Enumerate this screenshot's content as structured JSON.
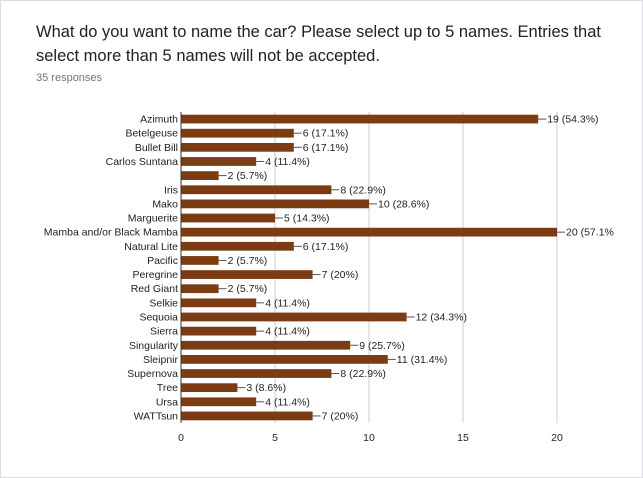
{
  "question": {
    "title": "What do you want to name the car? Please select up to 5 names. Entries that select more than 5 names will not be accepted.",
    "responses_label": "35 responses"
  },
  "colors": {
    "bar": "#7b3c13",
    "axis": "#333333",
    "grid": "#cccccc"
  },
  "chart_data": {
    "type": "bar",
    "orientation": "horizontal",
    "categories": [
      "Azimuth",
      "Betelgeuse",
      "Bullet Bill",
      "Carlos Suntana",
      "",
      "Iris",
      "Mako",
      "Marguerite",
      "Mamba and/or Black Mamba",
      "Natural Lite",
      "Pacific",
      "Peregrine",
      "Red Giant",
      "Selkie",
      "Sequoia",
      "Sierra",
      "Singularity",
      "Sleipnir",
      "Supernova",
      "Tree",
      "Ursa",
      "WATTsun"
    ],
    "values": [
      19,
      6,
      6,
      4,
      2,
      8,
      10,
      5,
      20,
      6,
      2,
      7,
      2,
      4,
      12,
      4,
      9,
      11,
      8,
      3,
      4,
      7
    ],
    "data_labels": [
      "19 (54.3%)",
      "6 (17.1%)",
      "6 (17.1%)",
      "4 (11.4%)",
      "2 (5.7%)",
      "8 (22.9%)",
      "10 (28.6%)",
      "5 (14.3%)",
      "20 (57.1%",
      "6 (17.1%)",
      "2 (5.7%)",
      "7 (20%)",
      "2 (5.7%)",
      "4 (11.4%)",
      "12 (34.3%)",
      "4 (11.4%)",
      "9 (25.7%)",
      "11 (31.4%)",
      "8 (22.9%)",
      "3 (8.6%)",
      "4 (11.4%)",
      "7 (20%)"
    ],
    "xlim": [
      0,
      20
    ],
    "xticks": [
      0,
      5,
      10,
      15,
      20
    ],
    "grid": true,
    "legend": false
  }
}
